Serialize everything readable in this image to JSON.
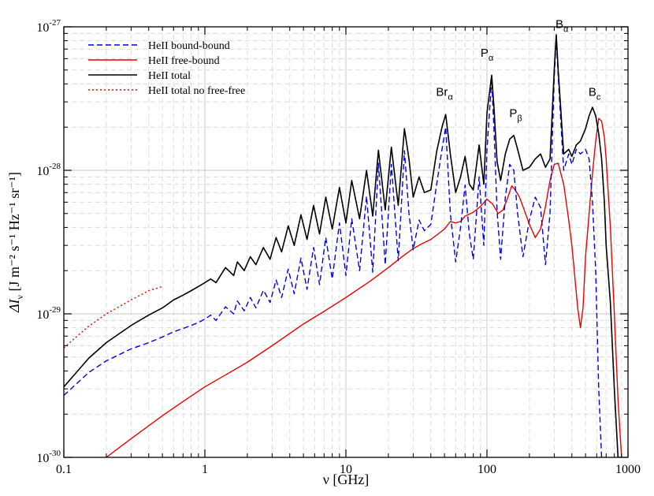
{
  "chart_data": {
    "type": "line",
    "xlabel": "ν  [GHz]",
    "ylabel_prefix": "ΔI",
    "ylabel_sub": "ν",
    "ylabel_units": "[J m⁻² s⁻¹ Hz⁻¹ sr⁻¹]",
    "x_scale": "log",
    "y_scale": "log",
    "xlim": [
      0.1,
      1000
    ],
    "ylim": [
      1e-30,
      1e-27
    ],
    "x_ticks": [
      {
        "value": 0.1,
        "label": "0.1"
      },
      {
        "value": 1,
        "label": "1"
      },
      {
        "value": 10,
        "label": "10"
      },
      {
        "value": 100,
        "label": "100"
      },
      {
        "value": 1000,
        "label": "1000"
      }
    ],
    "y_ticks": [
      {
        "value": 1e-30,
        "base": "10",
        "exp": "-30"
      },
      {
        "value": 1e-29,
        "base": "10",
        "exp": "-29"
      },
      {
        "value": 1e-28,
        "base": "10",
        "exp": "-28"
      },
      {
        "value": 1e-27,
        "base": "10",
        "exp": "-27"
      }
    ],
    "grid": true,
    "legend_position": "top-left",
    "series": [
      {
        "name": "HeII bound-bound",
        "color": "#0000ee",
        "style": "dashed",
        "x": [
          0.1,
          0.15,
          0.2,
          0.3,
          0.4,
          0.5,
          0.6,
          0.7,
          0.8,
          0.9,
          1.0,
          1.1,
          1.2,
          1.4,
          1.6,
          1.7,
          1.9,
          2.1,
          2.3,
          2.6,
          2.9,
          3.2,
          3.5,
          3.9,
          4.3,
          4.8,
          5.3,
          5.9,
          6.5,
          7.2,
          8.0,
          9.0,
          10,
          11,
          12.5,
          14,
          15.5,
          17,
          19,
          21,
          23.5,
          26,
          28,
          30,
          33,
          36,
          40,
          44,
          48,
          51,
          55,
          60,
          65,
          70,
          75,
          80,
          88,
          95,
          100,
          108,
          112,
          118,
          125,
          135,
          145,
          155,
          165,
          180,
          200,
          220,
          240,
          260,
          280,
          300,
          310,
          320,
          350,
          380,
          400,
          430,
          460,
          500,
          530,
          560,
          590,
          620,
          650,
          680,
          700
        ],
        "y": [
          2.7e-30,
          3.9e-30,
          4.7e-30,
          5.7e-30,
          6.3e-30,
          6.9e-30,
          7.5e-30,
          7.9e-30,
          8.3e-30,
          8.7e-30,
          9.2e-30,
          9.8e-30,
          9e-30,
          1.12e-29,
          1e-29,
          1.23e-29,
          1.05e-29,
          1.3e-29,
          1.1e-29,
          1.46e-29,
          1.2e-29,
          1.72e-29,
          1.3e-29,
          2.05e-29,
          1.38e-29,
          2.45e-29,
          1.48e-29,
          2.9e-29,
          1.6e-29,
          3.4e-29,
          1.75e-29,
          4.3e-29,
          1.85e-29,
          4.6e-29,
          2e-29,
          6.6e-29,
          1.95e-29,
          1.12e-28,
          2.2e-29,
          1.1e-28,
          2.35e-29,
          1.37e-28,
          5e-29,
          2.8e-29,
          4.5e-29,
          3.8e-29,
          4.2e-29,
          8e-29,
          1.4e-28,
          2e-28,
          5e-29,
          2.3e-29,
          4e-29,
          7.9e-29,
          3.6e-29,
          2.4e-29,
          9e-29,
          3e-29,
          1.4e-28,
          4.3e-28,
          2e-28,
          5.2e-29,
          2.4e-29,
          6.5e-29,
          1.1e-28,
          1e-28,
          5e-29,
          2.5e-29,
          4.5e-29,
          6.5e-29,
          5.5e-29,
          2.2e-29,
          5e-29,
          4.5e-28,
          8.3e-28,
          4.5e-28,
          1e-28,
          1.3e-28,
          1.1e-28,
          1.4e-28,
          1.3e-28,
          1.4e-28,
          1.2e-28,
          6e-29,
          2e-29,
          3e-30,
          1e-30,
          1e-30,
          1e-30
        ]
      },
      {
        "name": "HeII free-bound",
        "color": "#ee0000",
        "style": "solid",
        "x": [
          0.2,
          0.3,
          0.5,
          0.7,
          1.0,
          1.5,
          2.0,
          3.0,
          5.0,
          7.0,
          10,
          15,
          20,
          25,
          30,
          35,
          40,
          45,
          50,
          55,
          60,
          65,
          70,
          80,
          90,
          100,
          110,
          120,
          130,
          140,
          150,
          160,
          170,
          180,
          200,
          220,
          240,
          260,
          280,
          300,
          320,
          350,
          380,
          400,
          420,
          440,
          460,
          480,
          500,
          530,
          560,
          590,
          620,
          650,
          680,
          700,
          750,
          800,
          850,
          900
        ],
        "y": [
          1e-30,
          1.35e-30,
          1.95e-30,
          2.45e-30,
          3.1e-30,
          3.9e-30,
          4.6e-30,
          6e-30,
          8.5e-30,
          1.04e-29,
          1.3e-29,
          1.7e-29,
          2.1e-29,
          2.5e-29,
          2.85e-29,
          3.1e-29,
          3.3e-29,
          3.6e-29,
          3.9e-29,
          4.4e-29,
          4.3e-29,
          4.4e-29,
          4.8e-29,
          5.1e-29,
          5.6e-29,
          6.3e-29,
          5.8e-29,
          5e-29,
          5.3e-29,
          6.4e-29,
          7.8e-29,
          7.2e-29,
          6.5e-29,
          5.6e-29,
          4.2e-29,
          3.4e-29,
          3.9e-29,
          5.6e-29,
          8.5e-29,
          1.1e-28,
          1.12e-28,
          8e-29,
          4.5e-29,
          3e-29,
          1.8e-29,
          1.1e-29,
          8e-30,
          1.1e-29,
          2.5e-29,
          5e-29,
          9.5e-29,
          1.6e-28,
          2.3e-28,
          2.2e-28,
          1.7e-28,
          1.2e-28,
          4e-29,
          1e-29,
          2.5e-30,
          1e-30
        ]
      },
      {
        "name": "HeII total",
        "color": "#000000",
        "style": "solid",
        "x": [
          0.1,
          0.15,
          0.2,
          0.3,
          0.4,
          0.5,
          0.6,
          0.7,
          0.8,
          0.9,
          1.0,
          1.1,
          1.2,
          1.4,
          1.6,
          1.7,
          1.9,
          2.1,
          2.3,
          2.6,
          2.9,
          3.2,
          3.5,
          3.9,
          4.3,
          4.8,
          5.3,
          5.9,
          6.5,
          7.2,
          8.0,
          9.0,
          10,
          11,
          12.5,
          14,
          15.5,
          17,
          19,
          21,
          23.5,
          26,
          28,
          30,
          33,
          36,
          40,
          44,
          48,
          51,
          55,
          60,
          65,
          70,
          75,
          80,
          88,
          95,
          100,
          108,
          112,
          118,
          125,
          135,
          145,
          155,
          165,
          180,
          200,
          220,
          240,
          260,
          280,
          300,
          310,
          320,
          350,
          380,
          400,
          430,
          460,
          500,
          530,
          560,
          590,
          620,
          650,
          680,
          700,
          750,
          800,
          850,
          900
        ],
        "y": [
          3.1e-30,
          4.9e-30,
          6.3e-30,
          8.3e-30,
          9.8e-30,
          1.1e-29,
          1.25e-29,
          1.35e-29,
          1.45e-29,
          1.55e-29,
          1.65e-29,
          1.75e-29,
          1.65e-29,
          2.1e-29,
          1.85e-29,
          2.3e-29,
          2e-29,
          2.5e-29,
          2.2e-29,
          2.9e-29,
          2.4e-29,
          3.4e-29,
          2.7e-29,
          4.1e-29,
          3e-29,
          4.9e-29,
          3.3e-29,
          5.7e-29,
          3.6e-29,
          6.5e-29,
          3.9e-29,
          7.6e-29,
          4.3e-29,
          8.5e-29,
          4.6e-29,
          1e-28,
          4.8e-29,
          1.38e-28,
          5.3e-29,
          1.45e-28,
          5.7e-29,
          1.95e-28,
          1.2e-28,
          6.5e-29,
          9e-29,
          7e-29,
          7.3e-29,
          1.35e-28,
          2e-28,
          2.45e-28,
          1.3e-28,
          7e-29,
          9e-29,
          1.25e-28,
          8e-29,
          7.3e-29,
          1.5e-28,
          8e-29,
          2.5e-28,
          4.6e-28,
          2.8e-28,
          1.15e-28,
          8.5e-29,
          1.3e-28,
          1.65e-28,
          1.75e-28,
          1.4e-28,
          1e-28,
          1.05e-28,
          1.2e-28,
          1.3e-28,
          1.05e-28,
          1.2e-28,
          5e-28,
          8.8e-28,
          5e-28,
          1.3e-28,
          1.4e-28,
          1.25e-28,
          1.5e-28,
          1.6e-28,
          1.95e-28,
          2.4e-28,
          2.75e-28,
          2.4e-28,
          1.8e-28,
          1.2e-28,
          6e-29,
          3e-29,
          1.2e-29,
          3e-30,
          1e-30,
          1e-30
        ]
      },
      {
        "name": "HeII total no free-free",
        "color": "#ee0000",
        "style": "dotted",
        "x": [
          0.1,
          0.15,
          0.2,
          0.3,
          0.4,
          0.5
        ],
        "y": [
          5.8e-30,
          8.2e-30,
          1e-29,
          1.25e-29,
          1.45e-29,
          1.55e-29
        ]
      }
    ],
    "annotations": [
      {
        "text": "Br",
        "sub": "α",
        "x": 50,
        "y": 3.3e-28
      },
      {
        "text": "P",
        "sub": "α",
        "x": 100,
        "y": 6.2e-28
      },
      {
        "text": "P",
        "sub": "β",
        "x": 160,
        "y": 2.35e-28
      },
      {
        "text": "B",
        "sub": "α",
        "x": 340,
        "y": 9.8e-28
      },
      {
        "text": "B",
        "sub": "c",
        "x": 580,
        "y": 3.3e-28
      }
    ]
  }
}
